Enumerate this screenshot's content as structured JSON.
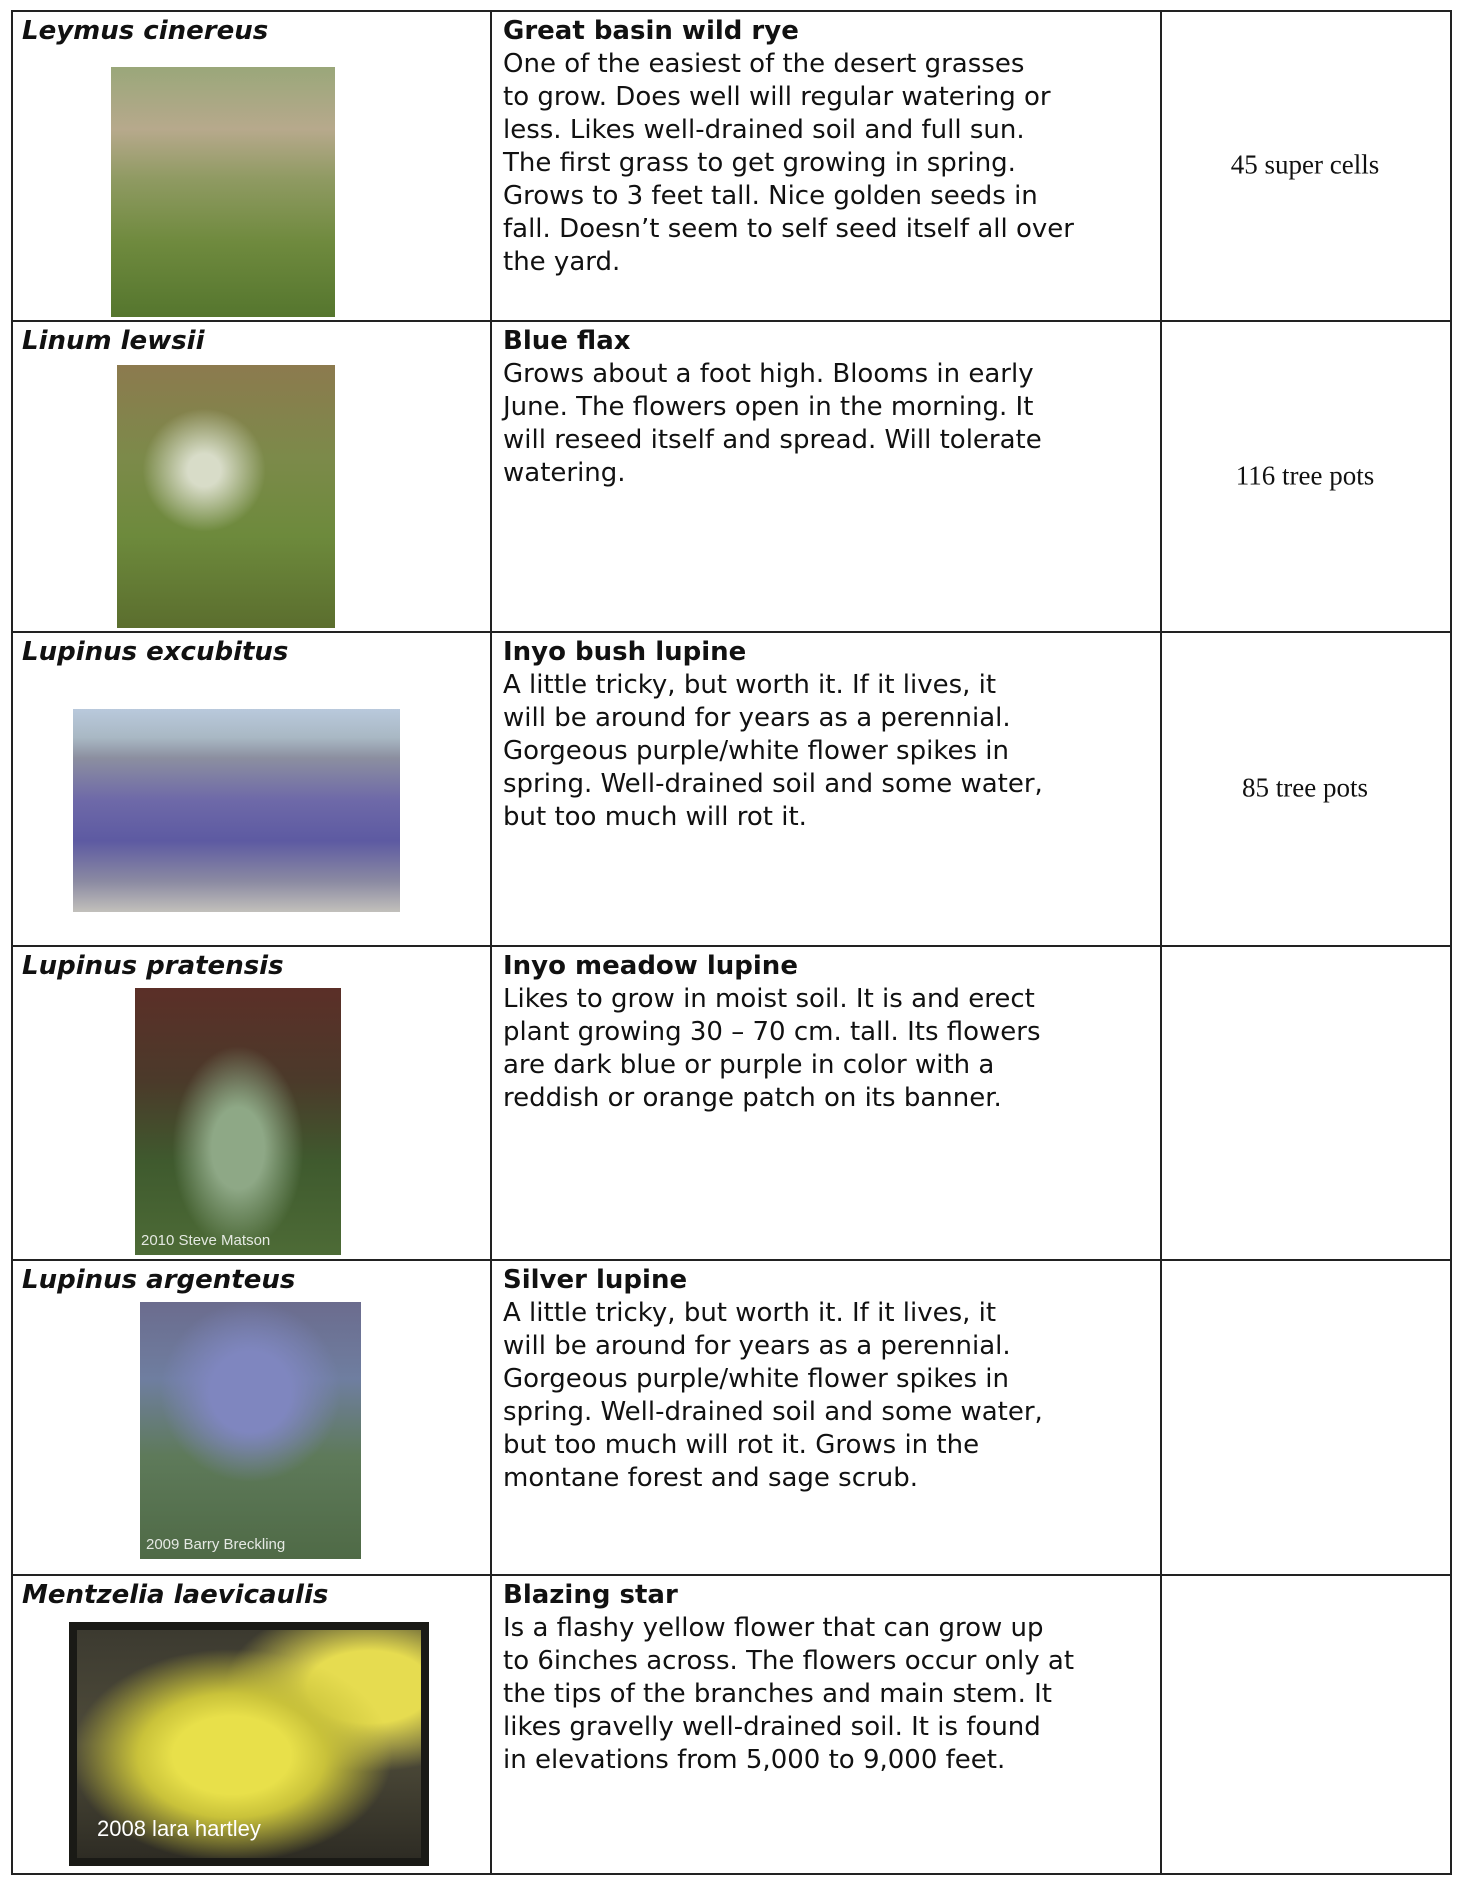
{
  "table": {
    "rows": [
      {
        "scientific_name": "Leymus cinereus",
        "common_name": "Great basin wild rye",
        "description": [
          "One of the easiest of the desert grasses",
          "to grow. Does well will regular watering or",
          "less. Likes well-drained soil and full sun.",
          "The first grass to get growing in spring.",
          "Grows to 3 feet tall. Nice golden seeds in",
          "fall. Doesn’t seem to self seed itself all over",
          "the yard."
        ],
        "quantity": "45 super cells"
      },
      {
        "scientific_name": "Linum lewsii",
        "common_name": "Blue flax",
        "description": [
          "Grows about a foot high. Blooms in early",
          "June. The flowers open in the morning. It",
          "will reseed itself and spread. Will tolerate",
          "watering."
        ],
        "quantity": "116 tree pots"
      },
      {
        "scientific_name": "Lupinus excubitus",
        "common_name": "Inyo bush lupine",
        "description": [
          "A little tricky, but worth it. If it lives, it",
          "will be around for years as a perennial.",
          "Gorgeous purple/white flower spikes in",
          "spring. Well-drained soil and some water,",
          "but too much will rot it."
        ],
        "quantity": "85 tree pots"
      },
      {
        "scientific_name": "Lupinus pratensis",
        "common_name": "Inyo meadow lupine",
        "description": [
          "Likes to grow in moist soil. It is and erect",
          "plant growing 30 – 70 cm. tall. Its flowers",
          "are dark blue or purple in color with a",
          "reddish or orange patch on its banner."
        ],
        "photo_credit": "2010 Steve Matson"
      },
      {
        "scientific_name": "Lupinus argenteus",
        "common_name": "Silver lupine",
        "description": [
          "A little tricky, but worth it. If it lives, it",
          "will be around for years as a perennial.",
          "Gorgeous purple/white flower spikes in",
          "spring. Well-drained soil and some water,",
          "but too much will rot it. Grows in the",
          "montane forest and sage scrub."
        ],
        "photo_credit": "2009 Barry Breckling"
      },
      {
        "scientific_name": "Mentzelia laevicaulis",
        "common_name": "Blazing star",
        "description": [
          "Is a flashy yellow flower that can grow up",
          "to 6inches across. The flowers occur only at",
          "the tips of the branches and main stem. It",
          "likes gravelly well-drained soil. It is found",
          "in elevations from 5,000 to 9,000 feet."
        ],
        "photo_credit": "2008 lara hartley"
      }
    ]
  }
}
